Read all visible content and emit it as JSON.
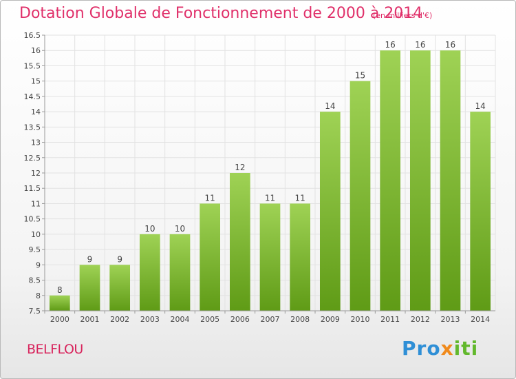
{
  "header": {
    "title": "Dotation Globale de Fonctionnement de 2000 à 2014",
    "subtitle": "(en milliers d'€)"
  },
  "footer": {
    "commune": "BELFLOU",
    "logo": {
      "part1": "Pro",
      "part2": "x",
      "part3": "iti"
    }
  },
  "colors": {
    "title": "#e0306a",
    "bar_top": "#9fd255",
    "bar_bottom": "#5f9b16",
    "grid": "#e2e2e2",
    "axis": "#9a9a9a"
  },
  "chart_data": {
    "type": "bar",
    "title": "Dotation Globale de Fonctionnement de 2000 à 2014",
    "subtitle": "(en milliers d'€)",
    "categories": [
      "2000",
      "2001",
      "2002",
      "2003",
      "2004",
      "2005",
      "2006",
      "2007",
      "2008",
      "2009",
      "2010",
      "2011",
      "2012",
      "2013",
      "2014"
    ],
    "values": [
      8,
      9,
      9,
      10,
      10,
      11,
      12,
      11,
      11,
      14,
      15,
      16,
      16,
      16,
      14
    ],
    "value_labels": [
      "8",
      "9",
      "9",
      "10",
      "10",
      "11",
      "12",
      "11",
      "11",
      "14",
      "15",
      "16",
      "16",
      "16",
      "14"
    ],
    "ylim": [
      7.5,
      16.5
    ],
    "yticks": [
      7.5,
      8,
      8.5,
      9,
      9.5,
      10,
      10.5,
      11,
      11.5,
      12,
      12.5,
      13,
      13.5,
      14,
      14.5,
      15,
      15.5,
      16,
      16.5
    ],
    "ytick_labels": [
      "7.5",
      "8",
      "8.5",
      "9",
      "9.5",
      "10",
      "10.5",
      "11",
      "11.5",
      "12",
      "12.5",
      "13",
      "13.5",
      "14",
      "14.5",
      "15",
      "15.5",
      "16",
      "16.5"
    ],
    "xlabel": "",
    "ylabel": "",
    "grid": true
  }
}
